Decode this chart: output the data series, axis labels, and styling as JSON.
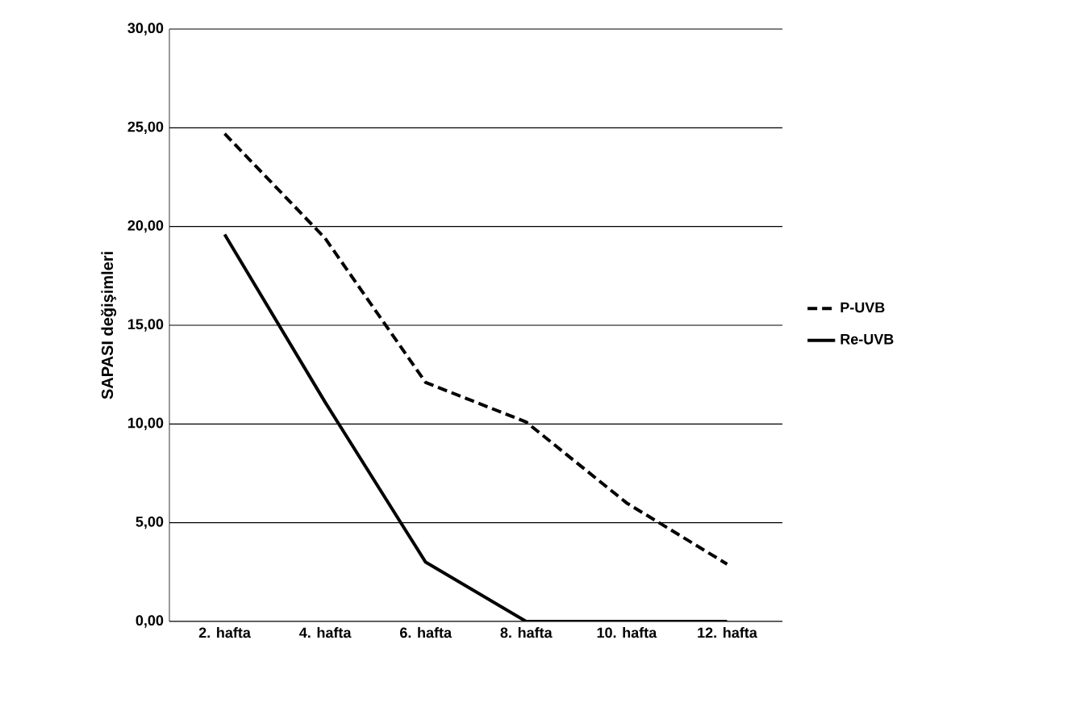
{
  "chart_data": {
    "type": "line",
    "ylabel": "SAPASI değişimleri",
    "categories": [
      "2. hafta",
      "4. hafta",
      "6. hafta",
      "8. hafta",
      "10. hafta",
      "12. hafta"
    ],
    "series": [
      {
        "name": "P-UVB",
        "color": "#000000",
        "line_style": "dashed",
        "values": [
          24.7,
          19.4,
          12.1,
          10.1,
          6.0,
          2.9
        ]
      },
      {
        "name": "Re-UVB",
        "color": "#000000",
        "line_style": "solid",
        "values": [
          19.6,
          11.1,
          3.0,
          0,
          0,
          0
        ]
      }
    ],
    "ylim": [
      0,
      30
    ],
    "yticks": [
      {
        "value": 0,
        "label": "0,00"
      },
      {
        "value": 5,
        "label": "5,00"
      },
      {
        "value": 10,
        "label": "10,00"
      },
      {
        "value": 15,
        "label": "15,00"
      },
      {
        "value": 20,
        "label": "20,00"
      },
      {
        "value": 25,
        "label": "25,00"
      },
      {
        "value": 30,
        "label": "30,00"
      }
    ],
    "grid": "y",
    "legend": "right",
    "marker": "none"
  }
}
